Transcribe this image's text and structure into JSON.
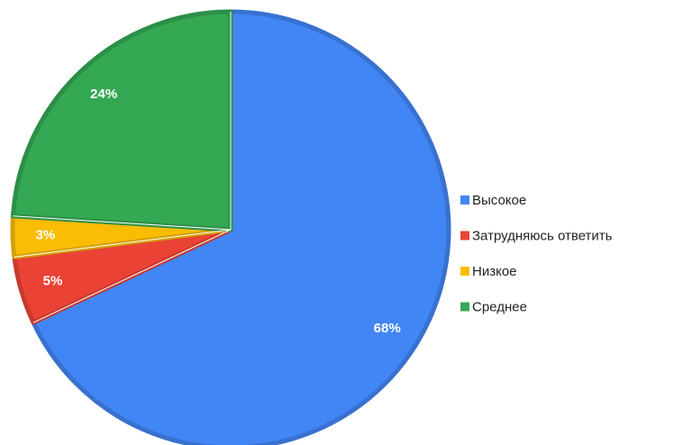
{
  "chart_data": {
    "type": "pie",
    "categories": [
      "Высокое",
      "Затрудняюсь ответить",
      "Низкое",
      "Среднее"
    ],
    "values": [
      68,
      5,
      3,
      24
    ],
    "value_labels": [
      "68%",
      "5%",
      "3%",
      "24%"
    ],
    "colors": [
      "#4285f4",
      "#ea4335",
      "#fbbc04",
      "#34a853"
    ],
    "legend": "right"
  }
}
